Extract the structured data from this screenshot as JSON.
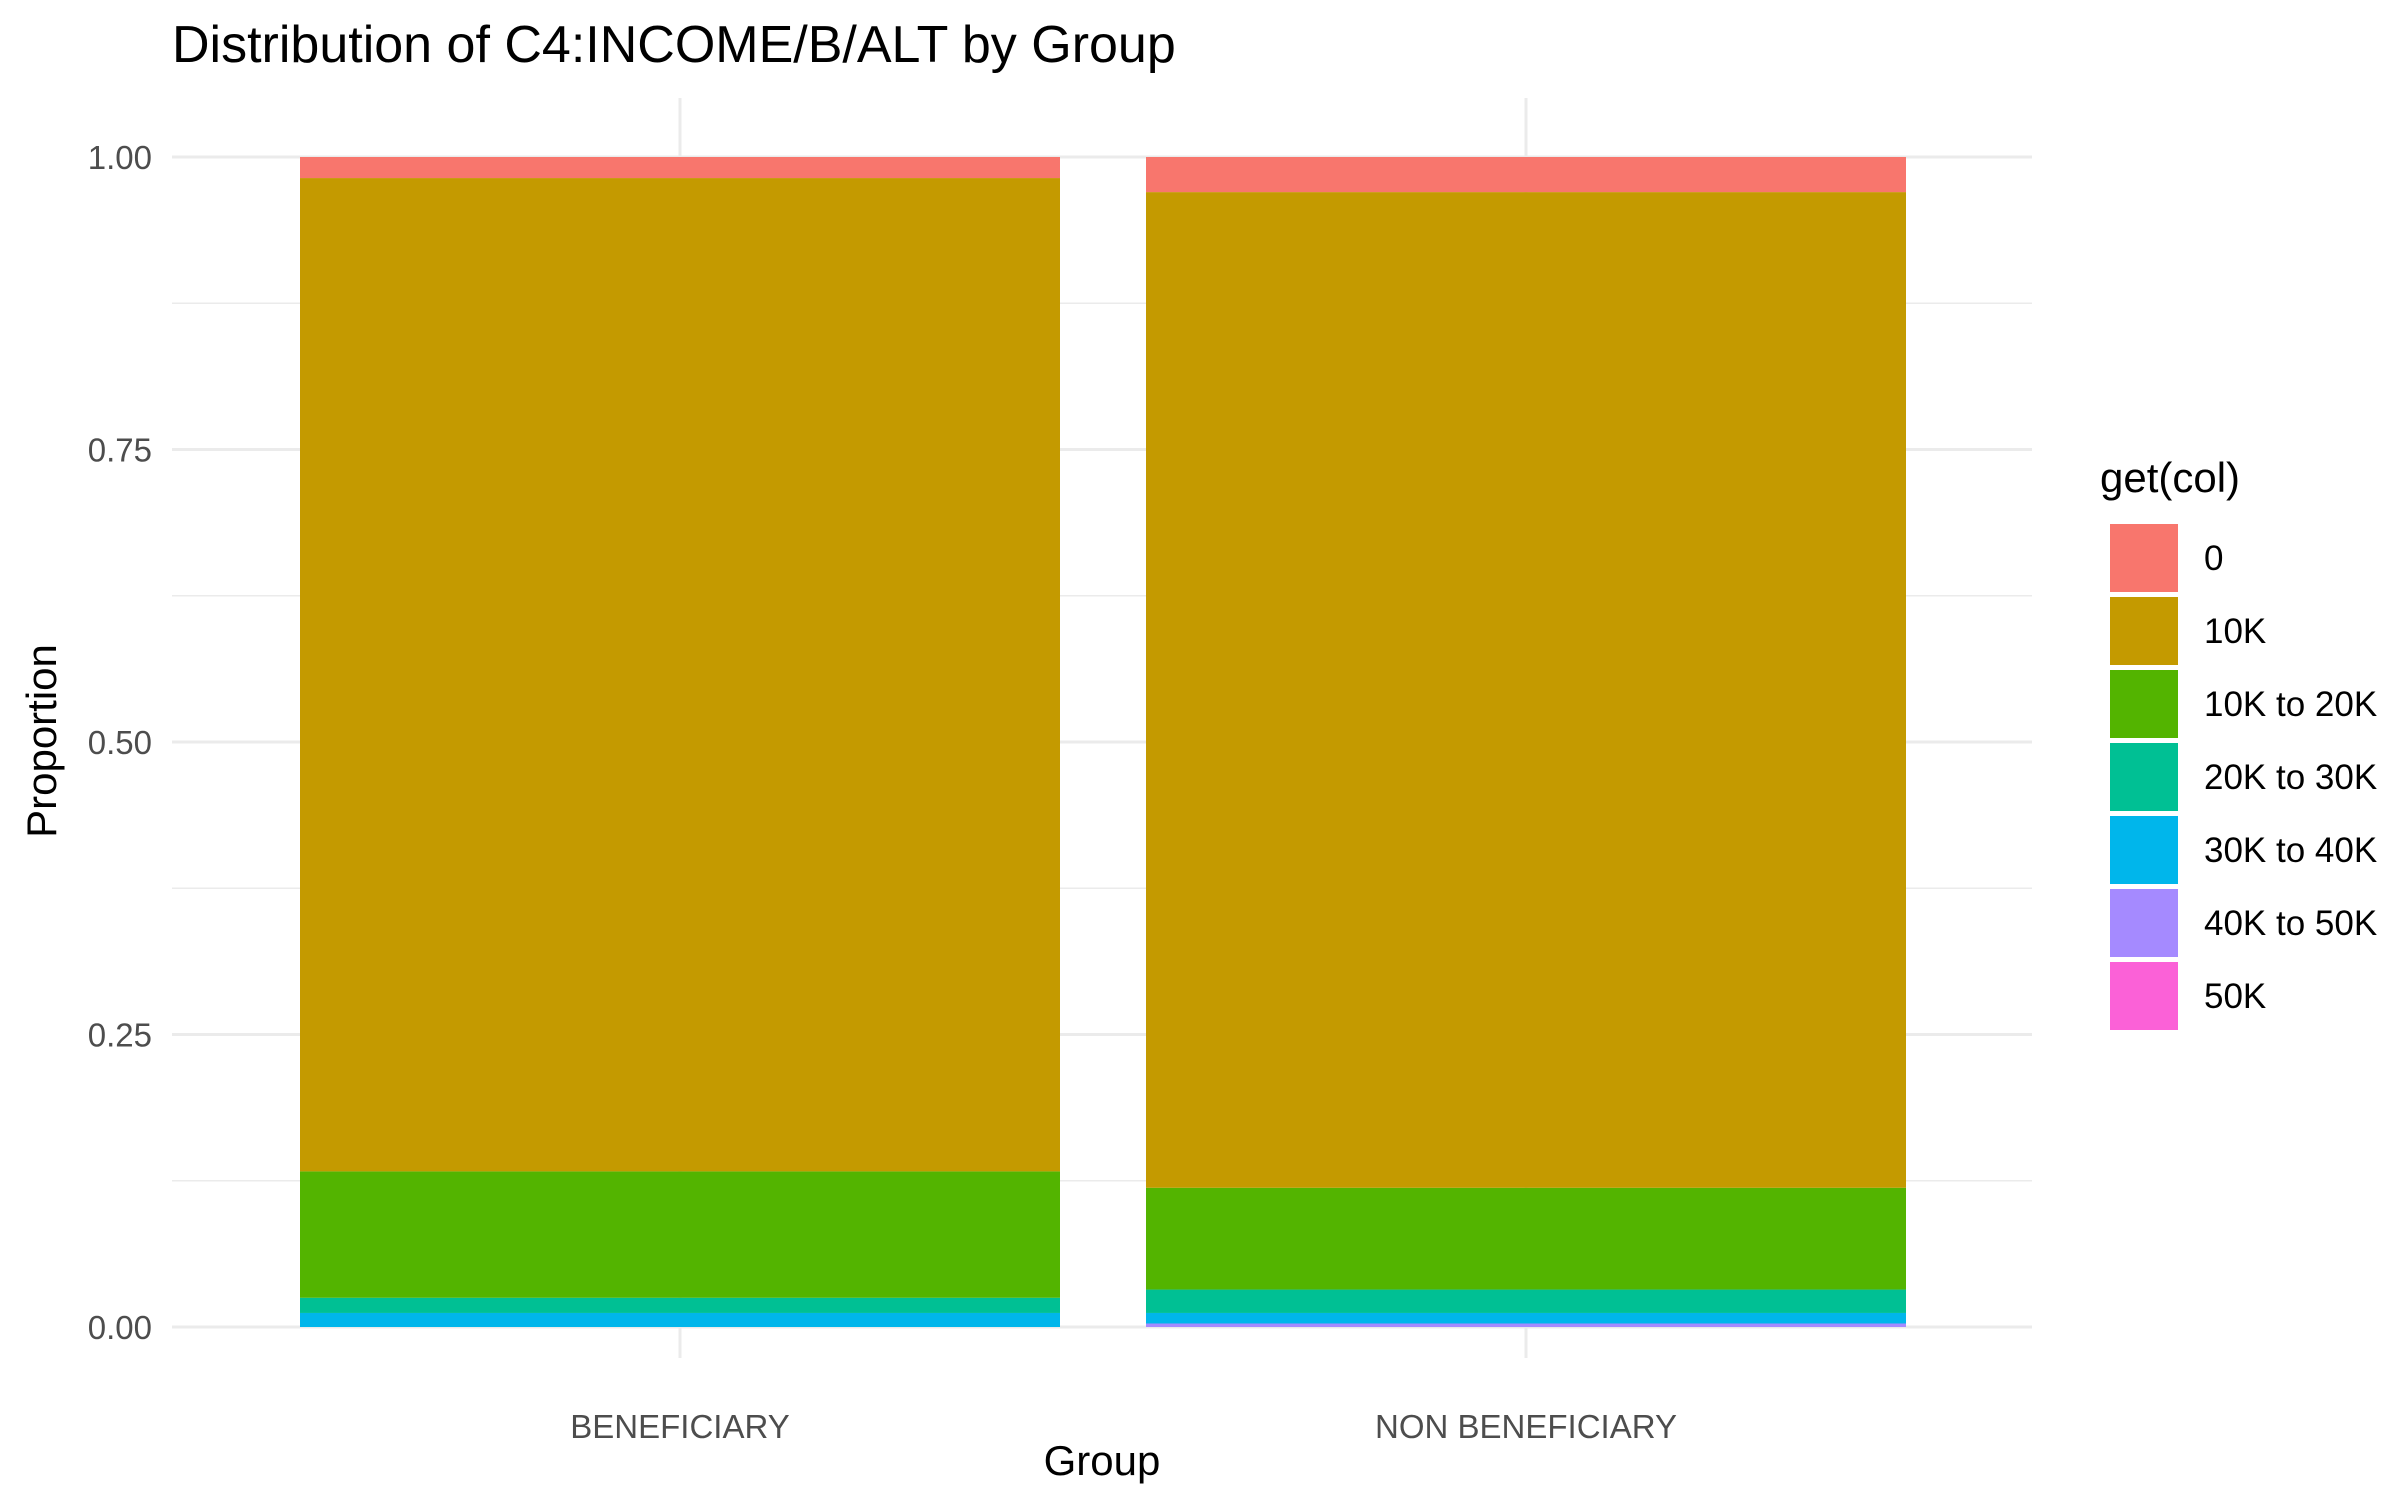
{
  "chart_data": {
    "type": "bar",
    "stacked": true,
    "title": "Distribution of C4:INCOME/B/ALT by Group",
    "xlabel": "Group",
    "ylabel": "Proportion",
    "ylim": [
      0,
      1
    ],
    "y_ticks": [
      "0.00",
      "0.25",
      "0.50",
      "0.75",
      "1.00"
    ],
    "grid": true,
    "legend_title": "get(col)",
    "legend_position": "right",
    "categories": [
      "BENEFICIARY",
      "NON BENEFICIARY"
    ],
    "series": [
      {
        "name": "0",
        "color": "#F8766D",
        "values": [
          0.018,
          0.03
        ]
      },
      {
        "name": "10K",
        "color": "#C49A00",
        "values": [
          0.849,
          0.851
        ]
      },
      {
        "name": "10K to 20K",
        "color": "#53B400",
        "values": [
          0.108,
          0.087
        ]
      },
      {
        "name": "20K to 30K",
        "color": "#00C094",
        "values": [
          0.013,
          0.02
        ]
      },
      {
        "name": "30K to 40K",
        "color": "#00B6EB",
        "values": [
          0.012,
          0.009
        ]
      },
      {
        "name": "40K to 50K",
        "color": "#A58AFF",
        "values": [
          0.0,
          0.003
        ]
      },
      {
        "name": "50K",
        "color": "#FB61D7",
        "values": [
          0.0,
          0.0
        ]
      }
    ]
  }
}
